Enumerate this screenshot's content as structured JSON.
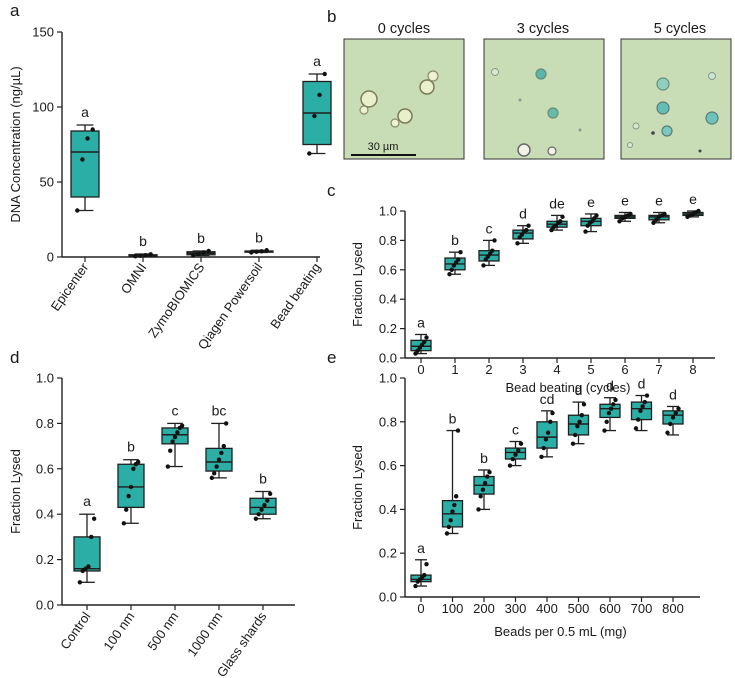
{
  "colors": {
    "box": "#2aaea5",
    "stroke": "#1f1f1f",
    "micro_bg": "#c5dcb2",
    "cell": "#b9d9c8",
    "cell_dark": "#3fb0a8"
  },
  "panels": {
    "a": {
      "letter": "a"
    },
    "b": {
      "letter": "b",
      "titles": [
        "0 cycles",
        "3 cycles",
        "5 cycles"
      ],
      "scale_bar": "30 µm"
    },
    "c": {
      "letter": "c"
    },
    "d": {
      "letter": "d"
    },
    "e": {
      "letter": "e"
    }
  },
  "chart_data": [
    {
      "id": "a",
      "type": "box",
      "ylabel": "DNA Concentration (ng/µL)",
      "xlabel": "",
      "ylim": [
        0,
        150
      ],
      "yticks": [
        "0",
        "50",
        "100",
        "150"
      ],
      "ytick_values": [
        0,
        50,
        100,
        150
      ],
      "categories": [
        "Epicenter",
        "OMNI",
        "ZymoBIOMICS",
        "Qiagen Powersoil",
        "Bead beating"
      ],
      "letters": [
        "a",
        "b",
        "b",
        "b",
        "a"
      ],
      "boxes": [
        {
          "min": 31,
          "q1": 40,
          "median": 70,
          "q3": 84,
          "max": 88,
          "points": [
            31,
            65,
            79,
            85
          ]
        },
        {
          "min": 0.5,
          "q1": 0.8,
          "median": 1.1,
          "q3": 1.5,
          "max": 2,
          "points": [
            0.5,
            0.9,
            1.2,
            1.8
          ]
        },
        {
          "min": 1,
          "q1": 1.5,
          "median": 2.5,
          "q3": 3.5,
          "max": 4,
          "points": [
            1,
            2,
            3,
            4
          ]
        },
        {
          "min": 3,
          "q1": 3.2,
          "median": 3.6,
          "q3": 4,
          "max": 4.5,
          "points": [
            3,
            3.5,
            3.8,
            4.5
          ]
        },
        {
          "min": 69,
          "q1": 75,
          "median": 96,
          "q3": 117,
          "max": 122,
          "points": [
            69,
            94,
            108,
            122
          ]
        }
      ]
    },
    {
      "id": "c",
      "type": "box",
      "ylabel": "Fraction Lysed",
      "xlabel": "Bead beating (cycles)",
      "ylim": [
        0,
        1.0
      ],
      "yticks": [
        "0.0",
        "0.2",
        "0.4",
        "0.6",
        "0.8",
        "1.0"
      ],
      "ytick_values": [
        0,
        0.2,
        0.4,
        0.6,
        0.8,
        1.0
      ],
      "categories": [
        "0",
        "1",
        "2",
        "3",
        "4",
        "5",
        "6",
        "7",
        "8"
      ],
      "letters": [
        "a",
        "b",
        "c",
        "d",
        "de",
        "e",
        "e",
        "e",
        "e"
      ],
      "boxes": [
        {
          "min": 0.03,
          "q1": 0.05,
          "median": 0.08,
          "q3": 0.12,
          "max": 0.16,
          "points": [
            0.03,
            0.05,
            0.07,
            0.09,
            0.11,
            0.14
          ]
        },
        {
          "min": 0.57,
          "q1": 0.6,
          "median": 0.64,
          "q3": 0.68,
          "max": 0.72,
          "points": [
            0.57,
            0.6,
            0.63,
            0.65,
            0.67,
            0.72
          ]
        },
        {
          "min": 0.63,
          "q1": 0.66,
          "median": 0.7,
          "q3": 0.73,
          "max": 0.8,
          "points": [
            0.63,
            0.67,
            0.69,
            0.71,
            0.73,
            0.8
          ]
        },
        {
          "min": 0.78,
          "q1": 0.81,
          "median": 0.85,
          "q3": 0.87,
          "max": 0.9,
          "points": [
            0.78,
            0.82,
            0.84,
            0.86,
            0.87,
            0.9
          ]
        },
        {
          "min": 0.87,
          "q1": 0.89,
          "median": 0.91,
          "q3": 0.93,
          "max": 0.97,
          "points": [
            0.87,
            0.89,
            0.9,
            0.92,
            0.93,
            0.96
          ]
        },
        {
          "min": 0.86,
          "q1": 0.9,
          "median": 0.93,
          "q3": 0.95,
          "max": 0.98,
          "points": [
            0.86,
            0.9,
            0.92,
            0.93,
            0.95,
            0.97
          ]
        },
        {
          "min": 0.93,
          "q1": 0.95,
          "median": 0.96,
          "q3": 0.97,
          "max": 0.99,
          "points": [
            0.93,
            0.95,
            0.96,
            0.97,
            0.98
          ]
        },
        {
          "min": 0.92,
          "q1": 0.94,
          "median": 0.96,
          "q3": 0.97,
          "max": 0.99,
          "points": [
            0.92,
            0.94,
            0.96,
            0.97,
            0.98
          ]
        },
        {
          "min": 0.96,
          "q1": 0.97,
          "median": 0.98,
          "q3": 0.99,
          "max": 1.0,
          "points": [
            0.96,
            0.97,
            0.98,
            0.99,
            1.0
          ]
        }
      ]
    },
    {
      "id": "d",
      "type": "box",
      "ylabel": "Fraction Lysed",
      "xlabel": "",
      "ylim": [
        0,
        1.0
      ],
      "yticks": [
        "0.0",
        "0.2",
        "0.4",
        "0.6",
        "0.8",
        "1.0"
      ],
      "ytick_values": [
        0,
        0.2,
        0.4,
        0.6,
        0.8,
        1.0
      ],
      "categories": [
        "Control",
        "100 nm",
        "500 nm",
        "1000 nm",
        "Glass shards"
      ],
      "letters": [
        "a",
        "b",
        "c",
        "bc",
        "b"
      ],
      "boxes": [
        {
          "min": 0.1,
          "q1": 0.15,
          "median": 0.16,
          "q3": 0.3,
          "max": 0.4,
          "points": [
            0.1,
            0.15,
            0.16,
            0.17,
            0.3,
            0.38
          ]
        },
        {
          "min": 0.36,
          "q1": 0.43,
          "median": 0.52,
          "q3": 0.62,
          "max": 0.64,
          "points": [
            0.36,
            0.42,
            0.48,
            0.52,
            0.6,
            0.62,
            0.63
          ]
        },
        {
          "min": 0.61,
          "q1": 0.71,
          "median": 0.75,
          "q3": 0.78,
          "max": 0.8,
          "points": [
            0.61,
            0.68,
            0.72,
            0.74,
            0.76,
            0.78,
            0.79
          ]
        },
        {
          "min": 0.56,
          "q1": 0.59,
          "median": 0.63,
          "q3": 0.69,
          "max": 0.8,
          "points": [
            0.56,
            0.58,
            0.61,
            0.64,
            0.67,
            0.7,
            0.8
          ]
        },
        {
          "min": 0.38,
          "q1": 0.4,
          "median": 0.43,
          "q3": 0.47,
          "max": 0.5,
          "points": [
            0.38,
            0.4,
            0.42,
            0.44,
            0.46,
            0.49
          ]
        }
      ]
    },
    {
      "id": "e",
      "type": "box",
      "ylabel": "Fraction Lysed",
      "xlabel": "Beads per 0.5 mL (mg)",
      "ylim": [
        0,
        1.0
      ],
      "yticks": [
        "0.0",
        "0.2",
        "0.4",
        "0.6",
        "0.8",
        "1.0"
      ],
      "ytick_values": [
        0,
        0.2,
        0.4,
        0.6,
        0.8,
        1.0
      ],
      "categories": [
        "0",
        "100",
        "200",
        "300",
        "400",
        "500",
        "600",
        "700",
        "800"
      ],
      "letters": [
        "a",
        "b",
        "b",
        "c",
        "cd",
        "d",
        "d",
        "d",
        "d"
      ],
      "boxes": [
        {
          "min": 0.05,
          "q1": 0.07,
          "median": 0.08,
          "q3": 0.1,
          "max": 0.17,
          "points": [
            0.05,
            0.07,
            0.08,
            0.09,
            0.1,
            0.15
          ]
        },
        {
          "min": 0.29,
          "q1": 0.32,
          "median": 0.38,
          "q3": 0.44,
          "max": 0.76,
          "points": [
            0.29,
            0.32,
            0.35,
            0.39,
            0.42,
            0.46,
            0.76
          ]
        },
        {
          "min": 0.4,
          "q1": 0.47,
          "median": 0.51,
          "q3": 0.55,
          "max": 0.58,
          "points": [
            0.4,
            0.46,
            0.49,
            0.52,
            0.55,
            0.57
          ]
        },
        {
          "min": 0.6,
          "q1": 0.63,
          "median": 0.66,
          "q3": 0.68,
          "max": 0.71,
          "points": [
            0.6,
            0.63,
            0.65,
            0.67,
            0.7
          ]
        },
        {
          "min": 0.64,
          "q1": 0.68,
          "median": 0.73,
          "q3": 0.8,
          "max": 0.85,
          "points": [
            0.64,
            0.68,
            0.72,
            0.75,
            0.8,
            0.84
          ]
        },
        {
          "min": 0.7,
          "q1": 0.74,
          "median": 0.79,
          "q3": 0.83,
          "max": 0.89,
          "points": [
            0.7,
            0.74,
            0.78,
            0.8,
            0.83,
            0.88
          ]
        },
        {
          "min": 0.76,
          "q1": 0.82,
          "median": 0.86,
          "q3": 0.88,
          "max": 0.91,
          "points": [
            0.76,
            0.8,
            0.84,
            0.86,
            0.88,
            0.9
          ]
        },
        {
          "min": 0.76,
          "q1": 0.81,
          "median": 0.86,
          "q3": 0.89,
          "max": 0.92,
          "points": [
            0.77,
            0.81,
            0.85,
            0.87,
            0.89,
            0.92
          ]
        },
        {
          "min": 0.74,
          "q1": 0.79,
          "median": 0.83,
          "q3": 0.85,
          "max": 0.87,
          "points": [
            0.75,
            0.79,
            0.82,
            0.84,
            0.86
          ]
        }
      ]
    }
  ]
}
